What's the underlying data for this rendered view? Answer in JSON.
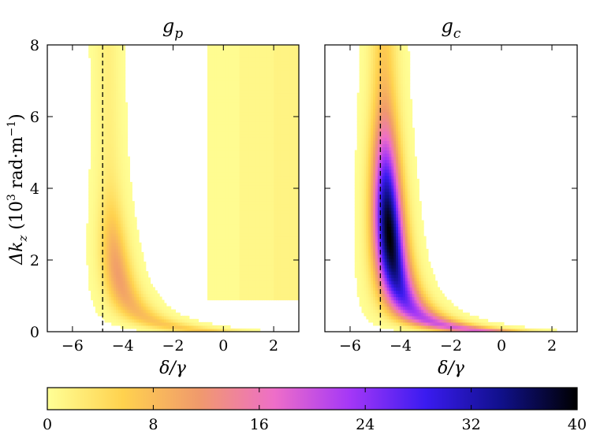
{
  "chart_data": [
    {
      "type": "heatmap",
      "title": "g",
      "title_sub": "p",
      "xlabel": "δ/γ",
      "ylabel_main": "Δk",
      "ylabel_sub": "z",
      "ylabel_open": " (10",
      "ylabel_sup": "3",
      "ylabel_unit": " rad·m",
      "ylabel_sup2": "−1",
      "ylabel_close": ")",
      "xlim": [
        -7,
        3
      ],
      "ylim": [
        0,
        8
      ],
      "xticks": [
        -6,
        -4,
        -2,
        0,
        2
      ],
      "xtick_labels": [
        "−6",
        "−4",
        "−2",
        "0",
        "2"
      ],
      "yticks": [
        0,
        2,
        4,
        6,
        8
      ],
      "ytick_labels": [
        "0",
        "2",
        "4",
        "6",
        "8"
      ],
      "dashed_line_x": -4.8,
      "band": {
        "x0": -4.6,
        "amplitude": 0.55,
        "decay": 1.1,
        "peak": 11,
        "width": 0.28
      },
      "background_regions": [
        {
          "x_from": -0.6,
          "x_to": 0.6,
          "value": 0.4
        },
        {
          "x_from": 0.6,
          "x_to": 2.0,
          "value": 1.0
        },
        {
          "x_from": 2.0,
          "x_to": 3.0,
          "value": 1.5
        }
      ]
    },
    {
      "type": "heatmap",
      "title": "g",
      "title_sub": "c",
      "xlabel": "δ/γ",
      "xlim": [
        -7,
        3
      ],
      "ylim": [
        0,
        8
      ],
      "xticks": [
        -6,
        -4,
        -2,
        0,
        2
      ],
      "xtick_labels": [
        "−6",
        "−4",
        "−2",
        "0",
        "2"
      ],
      "yticks": [
        0,
        2,
        4,
        6,
        8
      ],
      "dashed_line_x": -4.8,
      "band": {
        "x0": -4.65,
        "amplitude": 0.55,
        "decay": 1.0,
        "peak": 40,
        "width": 0.32
      }
    }
  ],
  "colorbar": {
    "min": 0,
    "max": 40,
    "ticks": [
      0,
      8,
      16,
      24,
      32,
      40
    ],
    "tick_labels": [
      "0",
      "8",
      "16",
      "24",
      "32",
      "40"
    ],
    "colors": [
      "#ffff96",
      "#ffd24e",
      "#f09a6c",
      "#ee6ec8",
      "#a437f7",
      "#3a1bf0",
      "#10108a",
      "#000000"
    ]
  }
}
